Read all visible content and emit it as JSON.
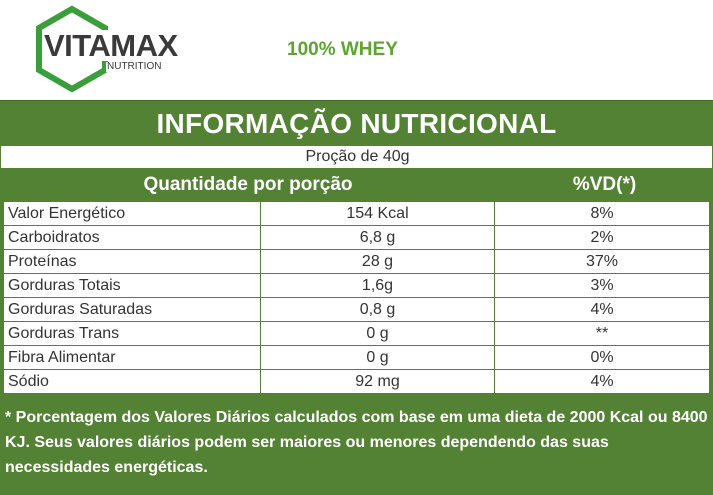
{
  "brand": {
    "name": "VITAMAX",
    "subtitle": "NUTRITION",
    "accent_color": "#3a9e3a"
  },
  "product": "100% WHEY",
  "label": {
    "title": "INFORMAÇÃO NUTRICIONAL",
    "portion": "Proção de 40g",
    "header_quantity": "Quantidade por porção",
    "header_vd": "%VD(*)",
    "rows": [
      {
        "name": "Valor Energético",
        "amount": "154 Kcal",
        "vd": "8%"
      },
      {
        "name": "Carboidratos",
        "amount": "6,8 g",
        "vd": "2%"
      },
      {
        "name": "Proteínas",
        "amount": "28 g",
        "vd": "37%"
      },
      {
        "name": "Gorduras Totais",
        "amount": "1,6g",
        "vd": "3%"
      },
      {
        "name": "Gorduras Saturadas",
        "amount": "0,8 g",
        "vd": "4%"
      },
      {
        "name": "Gorduras Trans",
        "amount": "0 g",
        "vd": "**"
      },
      {
        "name": "Fibra Alimentar",
        "amount": "0 g",
        "vd": "0%"
      },
      {
        "name": "Sódio",
        "amount": "92 mg",
        "vd": "4%"
      }
    ],
    "footnote": "* Porcentagem dos Valores Diários calculados com base em uma dieta de 2000 Kcal ou 8400 KJ. Seus valores diários podem ser maiores ou menores dependendo das suas necessidades energéticas.",
    "theme_color": "#548235"
  }
}
